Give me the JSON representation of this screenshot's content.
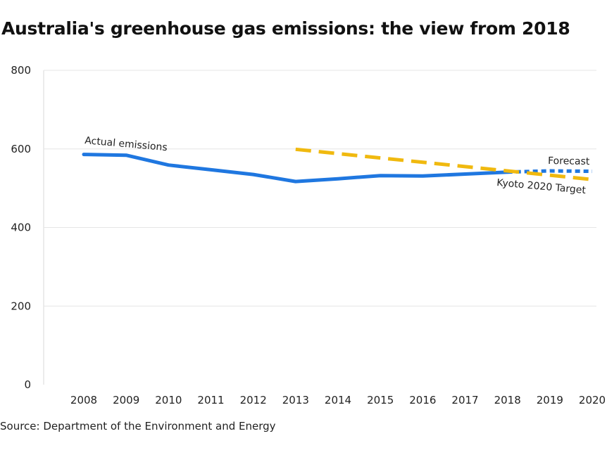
{
  "title": "Australia's greenhouse gas emissions: the view from 2018",
  "source": "Source: Department of the Environment and Energy",
  "chart_data": {
    "type": "line",
    "title": "Australia's greenhouse gas emissions: the view from 2018",
    "xlabel": "",
    "ylabel": "",
    "ylim": [
      0,
      800
    ],
    "yticks": [
      0,
      200,
      400,
      600,
      800
    ],
    "xticks": [
      "2008",
      "2009",
      "2010",
      "2011",
      "2012",
      "2013",
      "2014",
      "2015",
      "2016",
      "2017",
      "2018",
      "2019",
      "2020"
    ],
    "grid": true,
    "colors": {
      "actual": "#1f77e0",
      "target": "#f0b90f",
      "grid": "#e6e6e6"
    },
    "series": [
      {
        "name": "Actual emissions",
        "style": "solid",
        "color": "#1f77e0",
        "points": [
          [
            2008,
            586
          ],
          [
            2009,
            584
          ],
          [
            2010,
            559
          ],
          [
            2011,
            547
          ],
          [
            2012,
            535
          ],
          [
            2013,
            517
          ],
          [
            2014,
            524
          ],
          [
            2015,
            532
          ],
          [
            2016,
            531
          ],
          [
            2017,
            536
          ],
          [
            2018,
            541
          ]
        ]
      },
      {
        "name": "Forecast",
        "style": "dotted",
        "color": "#1f77e0",
        "points": [
          [
            2018,
            541
          ],
          [
            2019,
            544
          ],
          [
            2020,
            543
          ]
        ]
      },
      {
        "name": "Kyoto 2020 Target",
        "style": "dashed",
        "color": "#f0b90f",
        "points": [
          [
            2013,
            599
          ],
          [
            2020,
            522
          ]
        ]
      }
    ],
    "annotations": [
      {
        "text": "Actual emissions",
        "series": "Actual emissions"
      },
      {
        "text": "Forecast",
        "series": "Forecast"
      },
      {
        "text": "Kyoto 2020 Target",
        "series": "Kyoto 2020 Target"
      }
    ]
  }
}
